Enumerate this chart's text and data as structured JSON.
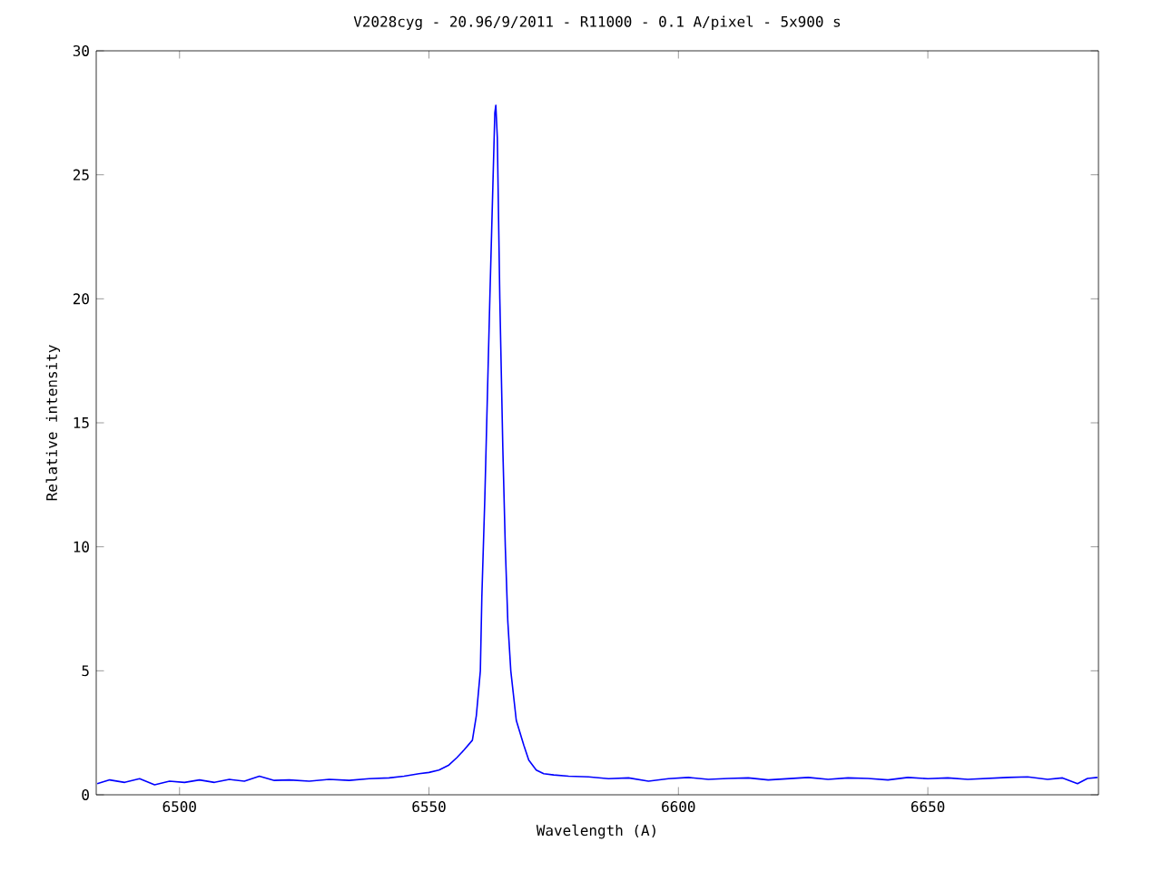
{
  "chart_data": {
    "type": "line",
    "title": "V2028cyg - 20.96/9/2011 - R11000 - 0.1 A/pixel - 5x900 s",
    "xlabel": "Wavelength (A)",
    "ylabel": "Relative intensity",
    "xlim": [
      6483.3,
      6684.2
    ],
    "ylim": [
      0,
      30
    ],
    "xticks": [
      6500,
      6550,
      6600,
      6650
    ],
    "yticks": [
      0,
      5,
      10,
      15,
      20,
      25,
      30
    ],
    "grid": false,
    "series": [
      {
        "color": "#0000ff",
        "x": [
          6483.5,
          6486,
          6489,
          6492,
          6495,
          6498,
          6501,
          6504,
          6507,
          6510,
          6513,
          6516,
          6519,
          6522,
          6526,
          6530,
          6534,
          6538,
          6542,
          6545,
          6548,
          6550,
          6552,
          6554,
          6555.6,
          6557,
          6558.7,
          6559.5,
          6560.3,
          6560.6,
          6561.2,
          6562.2,
          6562.8,
          6563.2,
          6563.4,
          6563.7,
          6564.2,
          6564.8,
          6565.3,
          6565.8,
          6566.4,
          6567.5,
          6569,
          6570,
          6571.5,
          6573,
          6575,
          6578,
          6582,
          6586,
          6590,
          6594,
          6598,
          6602,
          6606,
          6610,
          6614,
          6618,
          6622,
          6626,
          6630,
          6634,
          6638,
          6642,
          6646,
          6650,
          6654,
          6658,
          6662,
          6666,
          6670,
          6674,
          6677,
          6680,
          6682,
          6684
        ],
        "values": [
          0.45,
          0.6,
          0.5,
          0.65,
          0.4,
          0.55,
          0.5,
          0.6,
          0.5,
          0.62,
          0.55,
          0.75,
          0.58,
          0.6,
          0.55,
          0.62,
          0.58,
          0.65,
          0.68,
          0.75,
          0.85,
          0.9,
          1.0,
          1.2,
          1.5,
          1.8,
          2.2,
          3.2,
          5.0,
          8.0,
          12.0,
          20.0,
          24.5,
          27.5,
          27.8,
          26.5,
          20.0,
          14.0,
          10.0,
          7.0,
          5.0,
          3.0,
          2.0,
          1.4,
          1.0,
          0.85,
          0.8,
          0.75,
          0.72,
          0.65,
          0.68,
          0.55,
          0.65,
          0.7,
          0.62,
          0.66,
          0.68,
          0.6,
          0.65,
          0.7,
          0.62,
          0.68,
          0.66,
          0.6,
          0.7,
          0.65,
          0.68,
          0.62,
          0.66,
          0.7,
          0.72,
          0.62,
          0.68,
          0.45,
          0.66,
          0.7
        ]
      }
    ]
  }
}
